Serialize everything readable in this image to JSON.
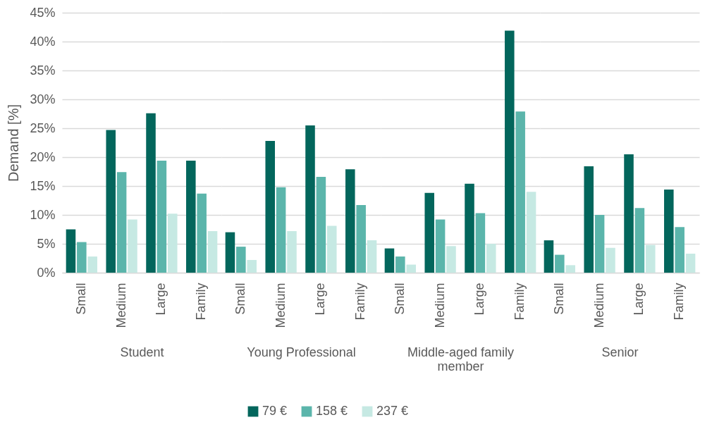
{
  "chart_data": [
    {
      "type": "bar",
      "xlabel": "Student",
      "ylabel": "Demand [%]",
      "categories": [
        "Small",
        "Medium",
        "Large",
        "Family"
      ],
      "series": [
        {
          "name": "79 €",
          "color": "#03665c",
          "values": [
            7.5,
            24.7,
            27.6,
            19.4
          ]
        },
        {
          "name": "158 €",
          "color": "#5bb5ab",
          "values": [
            5.3,
            17.4,
            19.4,
            13.7
          ]
        },
        {
          "name": "237 €",
          "color": "#c6e9e3",
          "values": [
            2.8,
            9.2,
            10.2,
            7.2
          ]
        }
      ],
      "ylim": [
        0,
        45
      ],
      "yticks": [
        {
          "value": 0,
          "label": "0%"
        },
        {
          "value": 5,
          "label": "5%"
        },
        {
          "value": 10,
          "label": "10%"
        },
        {
          "value": 15,
          "label": "15%"
        },
        {
          "value": 20,
          "label": "20%"
        },
        {
          "value": 25,
          "label": "25%"
        },
        {
          "value": 30,
          "label": "30%"
        },
        {
          "value": 35,
          "label": "35%"
        },
        {
          "value": 40,
          "label": "40%"
        },
        {
          "value": 45,
          "label": "45%"
        }
      ],
      "grid": "y",
      "legend": "bottom"
    },
    {
      "type": "bar",
      "xlabel": "Young Professional",
      "categories": [
        "Small",
        "Medium",
        "Large",
        "Family"
      ],
      "series": [
        {
          "color": "#03665c",
          "values": [
            7.0,
            22.8,
            25.5,
            17.9
          ]
        },
        {
          "color": "#5bb5ab",
          "values": [
            4.5,
            14.8,
            16.6,
            11.7
          ]
        },
        {
          "color": "#c6e9e3",
          "values": [
            2.2,
            7.2,
            8.1,
            5.6
          ]
        }
      ],
      "ylim": [
        0,
        45
      ],
      "yticks": [
        0,
        5,
        10,
        15,
        20,
        25,
        30,
        35,
        40,
        45
      ],
      "grid": "y",
      "tick_labels": "x"
    },
    {
      "type": "bar",
      "xlabel": "Middle-aged family member",
      "categories": [
        "Small",
        "Medium",
        "Large",
        "Family"
      ],
      "series": [
        {
          "color": "#03665c",
          "values": [
            4.2,
            13.8,
            15.4,
            41.9
          ]
        },
        {
          "color": "#5bb5ab",
          "values": [
            2.8,
            9.2,
            10.3,
            27.9
          ]
        },
        {
          "color": "#c6e9e3",
          "values": [
            1.4,
            4.6,
            5.0,
            14.0
          ]
        }
      ],
      "ylim": [
        0,
        45
      ],
      "yticks": [
        0,
        5,
        10,
        15,
        20,
        25,
        30,
        35,
        40,
        45
      ],
      "grid": "y",
      "tick_labels": "x"
    },
    {
      "type": "bar",
      "xlabel": "Senior",
      "categories": [
        "Small",
        "Medium",
        "Large",
        "Family"
      ],
      "series": [
        {
          "color": "#03665c",
          "values": [
            5.6,
            18.4,
            20.5,
            14.4
          ]
        },
        {
          "color": "#5bb5ab",
          "values": [
            3.1,
            10.0,
            11.2,
            7.9
          ]
        },
        {
          "color": "#c6e9e3",
          "values": [
            1.3,
            4.3,
            4.8,
            3.3
          ]
        }
      ],
      "ylim": [
        0,
        45
      ],
      "yticks": [
        0,
        5,
        10,
        15,
        20,
        25,
        30,
        35,
        40,
        45
      ],
      "grid": "y",
      "tick_labels": "x"
    }
  ]
}
